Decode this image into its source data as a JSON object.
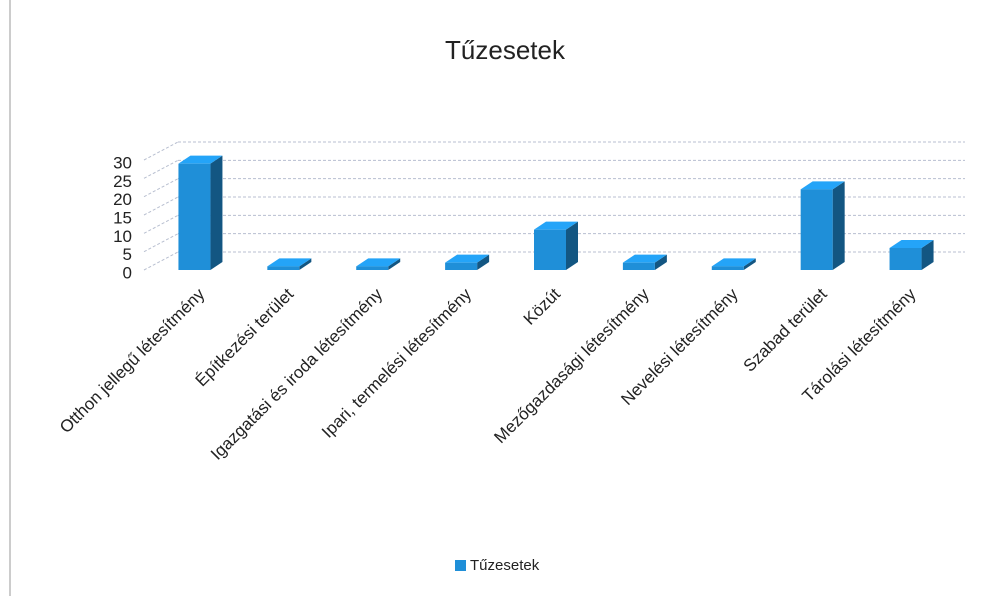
{
  "chart_data": {
    "type": "bar3d",
    "title": "Tűzesetek",
    "categories": [
      "Otthon jellegű létesítmény",
      "Építkezési terület",
      "Igazgatási és iroda létesítmény",
      "Ipari, termelési létesítmény",
      "Közút",
      "Mezőgazdasági létesítmény",
      "Nevelési létesítmény",
      "Szabad terület",
      "Tárolási létesítmény"
    ],
    "series": [
      {
        "name": "Tűzesetek",
        "color": "#1f8fd8",
        "values": [
          29,
          1,
          1,
          2,
          11,
          2,
          1,
          22,
          6
        ]
      }
    ],
    "ylim": [
      0,
      30
    ],
    "yticks": [
      0,
      5,
      10,
      15,
      20,
      25,
      30
    ],
    "grid": true,
    "legend": "bottom"
  }
}
